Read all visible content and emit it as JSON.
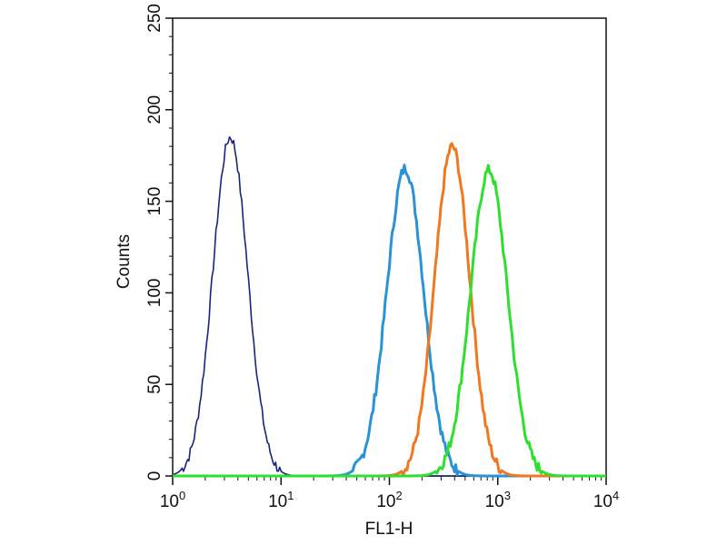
{
  "chart_data": {
    "type": "line",
    "title": "",
    "xlabel": "FL1-H",
    "ylabel": "Counts",
    "x_scale": "log",
    "xlim": [
      1,
      10000
    ],
    "ylim": [
      0,
      250
    ],
    "grid": false,
    "x_ticks": [
      {
        "value": 1,
        "base": "10",
        "exp": "0"
      },
      {
        "value": 10,
        "base": "10",
        "exp": "1"
      },
      {
        "value": 100,
        "base": "10",
        "exp": "2"
      },
      {
        "value": 1000,
        "base": "10",
        "exp": "3"
      },
      {
        "value": 10000,
        "base": "10",
        "exp": "4"
      }
    ],
    "y_ticks": [
      0,
      50,
      100,
      150,
      200,
      250
    ],
    "series": [
      {
        "color": "#1a237e",
        "peak_x": 3.4,
        "peak_y": 185,
        "width_decades": 0.16
      },
      {
        "color": "#2a93d5",
        "peak_x": 140,
        "peak_y": 168,
        "width_decades": 0.17
      },
      {
        "color": "#f07820",
        "peak_x": 380,
        "peak_y": 180,
        "width_decades": 0.16
      },
      {
        "color": "#2ee02e",
        "peak_x": 830,
        "peak_y": 167,
        "width_decades": 0.17
      }
    ]
  }
}
